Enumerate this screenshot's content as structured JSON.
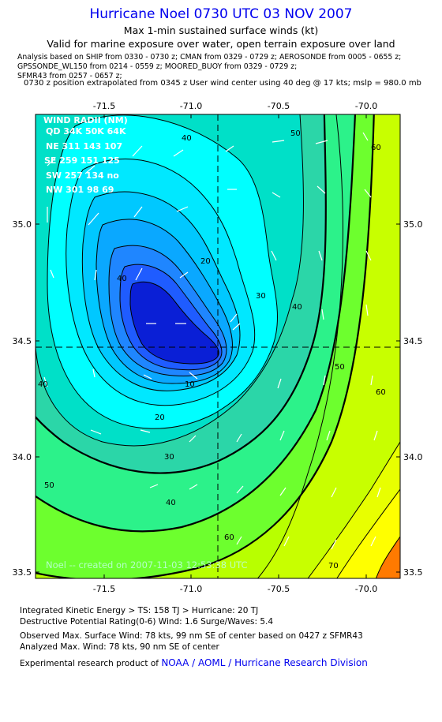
{
  "header": {
    "title": "Hurricane Noel 0730 UTC 03 NOV 2007",
    "subtitle1": "Max 1-min sustained surface winds (kt)",
    "subtitle2": "Valid for marine exposure over water, open terrain exposure over land",
    "analysis_line1": "Analysis based on  SHIP from 0330 - 0730 z;  CMAN from 0329 - 0729 z;  AEROSONDE from 0005 - 0655 z;",
    "analysis_line2": "GPSSONDE_WL150 from 0214 - 0559 z;  MOORED_BUOY from 0329 - 0729 z;",
    "analysis_line3": "SFMR43 from 0257 - 0657 z;",
    "position_line": "0730 z position extrapolated from 0345 z User wind center using 40 deg @ 17 kts; mslp = 980.0 mb"
  },
  "map": {
    "x_ticks": [
      "-71.5",
      "-71.0",
      "-70.5",
      "-70.0"
    ],
    "y_ticks": [
      "35.0",
      "34.5",
      "34.0",
      "33.5"
    ],
    "wind_radii": {
      "title": "WIND RADII (NM)",
      "header": "QD 34K 50K 64K",
      "rows": [
        "NE 311 143 107",
        "SE 259 151 125",
        "SW 257 134  no",
        "NW 301  98  69"
      ]
    },
    "watermark": "Noel -- created on 2007-11-03 12:53:38 UTC",
    "contour_labels": [
      "10",
      "20",
      "20",
      "30",
      "30",
      "40",
      "40",
      "40",
      "40",
      "40",
      "50",
      "50",
      "50",
      "60",
      "60",
      "60",
      "70"
    ],
    "colors": {
      "deep_blue": "#0a1fd6",
      "blue": "#1f5cff",
      "cyan": "#00ffff",
      "green": "#21e6a0",
      "yellow_green": "#b8ff00",
      "yellow": "#ffff00",
      "orange": "#ff7a00"
    }
  },
  "footer": {
    "line1": "Integrated Kinetic Energy > TS: 158 TJ   > Hurricane: 20 TJ",
    "line2": "Destructive Potential Rating(0-6)  Wind: 1.6 Surge/Waves: 5.4",
    "line3": "Observed Max. Surface Wind: 78 kts, 99 nm SE of center based on 0427 z SFMR43",
    "line4": "Analyzed Max. Wind: 78 kts, 90 nm SE of center",
    "credit_prefix": "Experimental research product of ",
    "credit_org": "NOAA / AOML / Hurricane Research Division"
  }
}
